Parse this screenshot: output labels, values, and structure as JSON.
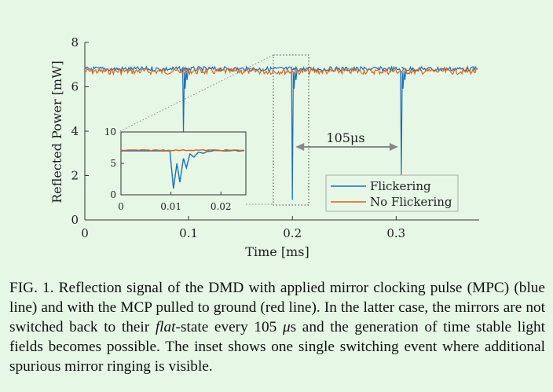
{
  "figure": {
    "legend": {
      "position": "lower-right"
    },
    "annotation": {
      "text": "105μs"
    },
    "caption": {
      "label": "FIG. 1.",
      "part1": " Reflection signal of the DMD with applied mirror clocking pulse (MPC) (blue line) and with the MCP pulled to ground (red line). In the latter case, the mirrors are not switched back to their ",
      "emph": "flat",
      "part2": "-state every 105 ",
      "mu": "μ",
      "part3": "s and the generation of time stable light fields becomes possible. The inset shows one single switching event where additional spurious mirror ringing is visible."
    }
  },
  "chart_data": [
    {
      "type": "line",
      "xlabel": "Time [ms]",
      "ylabel": "Reflected Power [mW]",
      "xlim": [
        0,
        0.38
      ],
      "ylim": [
        0,
        8
      ],
      "xticks": [
        "0",
        "0.1",
        "0.2",
        "0.3"
      ],
      "yticks": [
        "0",
        "2",
        "4",
        "6",
        "8"
      ],
      "colors": {
        "Flickering": "#1f6fb5",
        "No Flickering": "#d9601b"
      },
      "series": [
        {
          "name": "Flickering",
          "baseline": 6.8,
          "dips": [
            {
              "x": 0.095,
              "min": 3.9
            },
            {
              "x": 0.2,
              "min": 0.9
            },
            {
              "x": 0.305,
              "min": 2.0
            }
          ]
        },
        {
          "name": "No Flickering",
          "baseline": 6.7
        }
      ],
      "legend": "lower-right",
      "grid": false
    },
    {
      "type": "line",
      "role": "inset",
      "xlim": [
        0,
        0.025
      ],
      "ylim": [
        0,
        10
      ],
      "xticks": [
        "0",
        "0.01",
        "0.02"
      ],
      "yticks": [
        "0",
        "5",
        "10"
      ],
      "series": [
        {
          "name": "Flickering",
          "baseline": 7.0,
          "ringing": [
            {
              "x": 0.0098,
              "y": 7.0
            },
            {
              "x": 0.0105,
              "y": 1.0
            },
            {
              "x": 0.0112,
              "y": 5.0
            },
            {
              "x": 0.0118,
              "y": 2.0
            },
            {
              "x": 0.0125,
              "y": 5.8
            },
            {
              "x": 0.0131,
              "y": 4.3
            },
            {
              "x": 0.0138,
              "y": 6.5
            },
            {
              "x": 0.0146,
              "y": 6.0
            },
            {
              "x": 0.0155,
              "y": 6.8
            },
            {
              "x": 0.0165,
              "y": 6.6
            },
            {
              "x": 0.0175,
              "y": 7.0
            }
          ]
        },
        {
          "name": "No Flickering",
          "baseline": 7.1
        }
      ]
    }
  ]
}
